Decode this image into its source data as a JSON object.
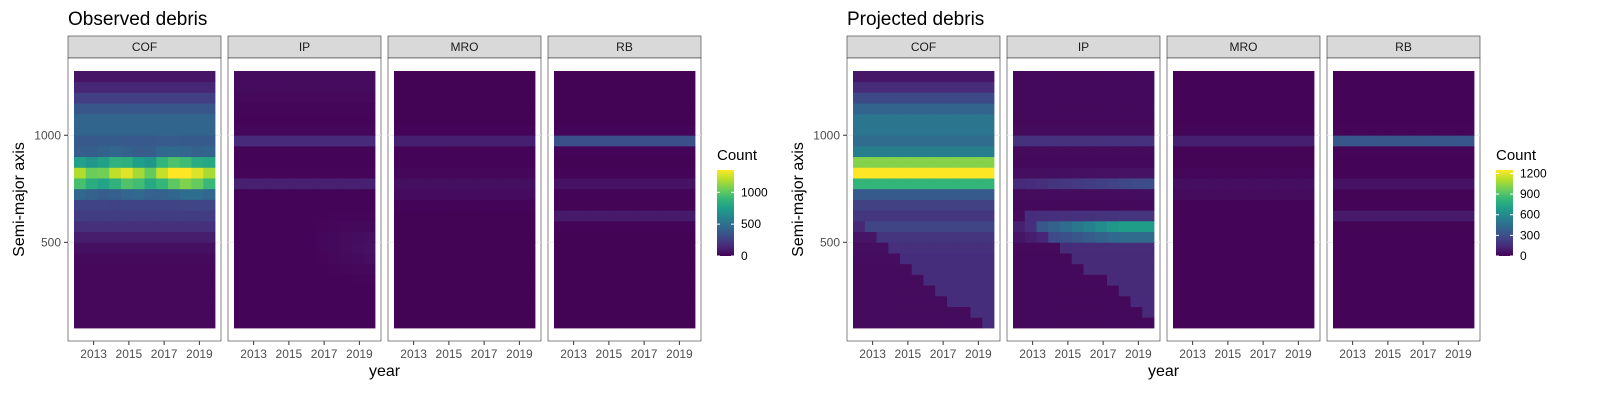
{
  "chart_data": [
    {
      "type": "heatmap",
      "title": "Observed debris",
      "xlabel": "year",
      "ylabel": "Semi-major axis",
      "x_tick_labels": [
        "2013",
        "2015",
        "2017",
        "2019"
      ],
      "y_ticks": [
        500,
        1000
      ],
      "y_range": [
        100,
        1300
      ],
      "legend": {
        "title": "Count",
        "position": "right",
        "ticks": [
          0,
          500,
          1000
        ],
        "max": 1350
      },
      "facets": [
        {
          "label": "COF",
          "peak_center": 820,
          "peak_value": 1280
        },
        {
          "label": "IP",
          "peak_center": 980,
          "peak_value": 150
        },
        {
          "label": "MRO",
          "peak_center": 980,
          "peak_value": 110
        },
        {
          "label": "RB",
          "peak_center": 975,
          "peak_value": 320
        }
      ]
    },
    {
      "type": "heatmap",
      "title": "Projected debris",
      "xlabel": "year",
      "ylabel": "Semi-major axis",
      "x_tick_labels": [
        "2013",
        "2015",
        "2017",
        "2019"
      ],
      "y_ticks": [
        500,
        1000
      ],
      "y_range": [
        100,
        1300
      ],
      "legend": {
        "title": "Count",
        "position": "right",
        "ticks": [
          0,
          300,
          600,
          900,
          1200
        ],
        "max": 1250
      },
      "facets": [
        {
          "label": "COF",
          "peak_center": 820,
          "peak_value": 1200
        },
        {
          "label": "IP",
          "peak_center": 560,
          "peak_value": 650
        },
        {
          "label": "MRO",
          "peak_center": 980,
          "peak_value": 100
        },
        {
          "label": "RB",
          "peak_center": 975,
          "peak_value": 320
        }
      ]
    }
  ],
  "colors": {
    "viridis": [
      "#440154",
      "#482878",
      "#3e4a89",
      "#31688e",
      "#26828e",
      "#1f9e89",
      "#35b779",
      "#6ece58",
      "#b5de2b",
      "#fde725"
    ],
    "strip_bg": "#d9d9d9",
    "grid": "#ebebeb"
  }
}
